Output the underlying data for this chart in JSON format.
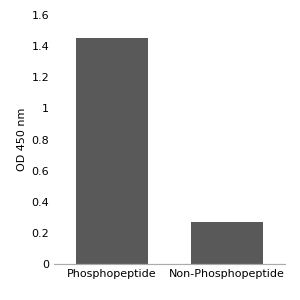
{
  "categories": [
    "Phosphopeptide",
    "Non-Phosphopeptide"
  ],
  "values": [
    1.45,
    0.27
  ],
  "bar_color": "#595959",
  "ylabel": "OD 450 nm",
  "ylim": [
    0,
    1.6
  ],
  "yticks": [
    0,
    0.2,
    0.4,
    0.6,
    0.8,
    1.0,
    1.2,
    1.4,
    1.6
  ],
  "ytick_labels": [
    "0",
    "0.2",
    "0.4",
    "0.6",
    "0.8",
    "1",
    "1.2",
    "1.4",
    "1.6"
  ],
  "bar_width": 0.5,
  "background_color": "#ffffff",
  "axes_background": "#ffffff",
  "tick_label_fontsize": 8,
  "ylabel_fontsize": 8,
  "xlabel_fontsize": 8,
  "bar_positions": [
    0.3,
    1.1
  ]
}
